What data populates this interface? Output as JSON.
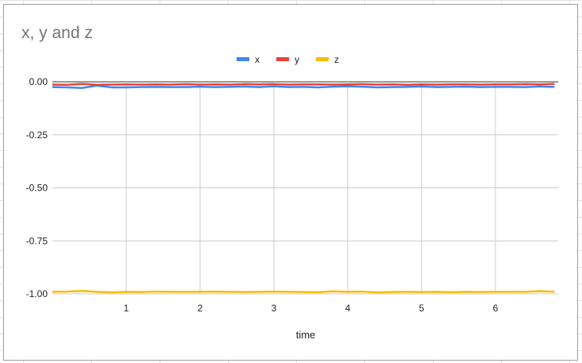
{
  "chart_data": {
    "type": "line",
    "title": "x, y and z",
    "xlabel": "time",
    "ylabel": "",
    "xlim": [
      0,
      6.85
    ],
    "ylim": [
      -1.0,
      0.0
    ],
    "x_ticks": [
      "1",
      "2",
      "3",
      "4",
      "5",
      "6"
    ],
    "y_ticks": [
      "0.00",
      "-0.25",
      "-0.50",
      "-0.75",
      "-1.00"
    ],
    "grid": true,
    "legend": "top",
    "x": [
      0,
      0.2,
      0.4,
      0.6,
      0.8,
      1.0,
      1.2,
      1.4,
      1.6,
      1.8,
      2.0,
      2.2,
      2.4,
      2.6,
      2.8,
      3.0,
      3.2,
      3.4,
      3.6,
      3.8,
      4.0,
      4.2,
      4.4,
      4.6,
      4.8,
      5.0,
      5.2,
      5.4,
      5.6,
      5.8,
      6.0,
      6.2,
      6.4,
      6.6,
      6.8
    ],
    "series": [
      {
        "name": "x",
        "color": "#4285f4",
        "values": [
          -0.025,
          -0.026,
          -0.029,
          -0.018,
          -0.026,
          -0.026,
          -0.025,
          -0.024,
          -0.025,
          -0.025,
          -0.023,
          -0.025,
          -0.024,
          -0.022,
          -0.025,
          -0.021,
          -0.025,
          -0.024,
          -0.026,
          -0.023,
          -0.021,
          -0.023,
          -0.026,
          -0.025,
          -0.024,
          -0.022,
          -0.025,
          -0.024,
          -0.023,
          -0.025,
          -0.024,
          -0.024,
          -0.025,
          -0.022,
          -0.024
        ]
      },
      {
        "name": "y",
        "color": "#ea4335",
        "values": [
          -0.013,
          -0.014,
          -0.01,
          -0.014,
          -0.013,
          -0.012,
          -0.013,
          -0.012,
          -0.013,
          -0.011,
          -0.013,
          -0.012,
          -0.013,
          -0.011,
          -0.012,
          -0.011,
          -0.013,
          -0.012,
          -0.012,
          -0.013,
          -0.012,
          -0.011,
          -0.013,
          -0.012,
          -0.014,
          -0.012,
          -0.013,
          -0.012,
          -0.012,
          -0.013,
          -0.012,
          -0.012,
          -0.011,
          -0.012,
          -0.01
        ]
      },
      {
        "name": "z",
        "color": "#fbbc04",
        "values": [
          -0.99,
          -0.989,
          -0.986,
          -0.99,
          -0.993,
          -0.99,
          -0.991,
          -0.989,
          -0.99,
          -0.99,
          -0.99,
          -0.989,
          -0.99,
          -0.991,
          -0.99,
          -0.989,
          -0.99,
          -0.991,
          -0.992,
          -0.988,
          -0.99,
          -0.989,
          -0.993,
          -0.991,
          -0.99,
          -0.991,
          -0.99,
          -0.992,
          -0.99,
          -0.991,
          -0.99,
          -0.99,
          -0.99,
          -0.987,
          -0.99
        ]
      }
    ]
  }
}
